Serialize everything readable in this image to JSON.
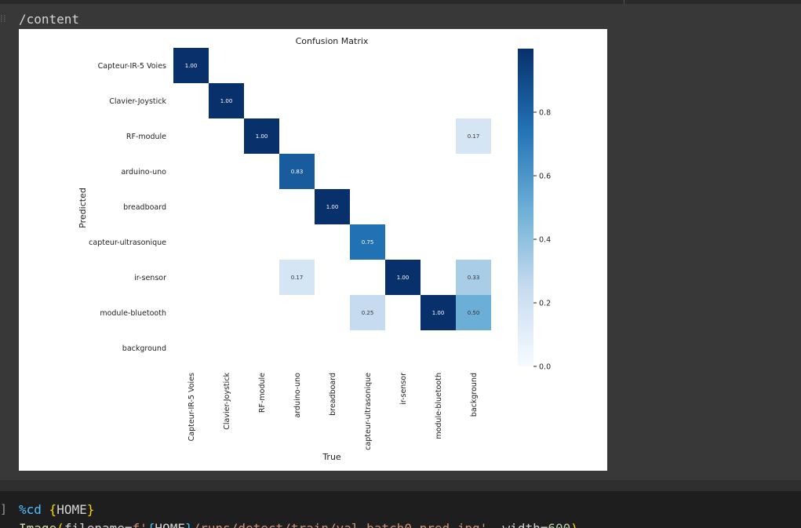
{
  "output": {
    "path": "/content"
  },
  "code": {
    "prompt": "]",
    "line1": {
      "magic": "%cd",
      "open": "{",
      "var": "HOME",
      "close": "}"
    },
    "line2": {
      "fn": "Image",
      "paren_open": "(",
      "arg": "filename",
      "eq": "=",
      "fprefix": "f'",
      "brace_open": "{",
      "var": "HOME",
      "brace_close": "}",
      "path": "/runs/detect/train/val_batch0_pred.jpg'",
      "comma": ", ",
      "width_kw": "width",
      "width_eq": "=",
      "width_val": "600",
      "paren_close": ")"
    }
  },
  "chart_data": {
    "type": "heatmap",
    "title": "Confusion Matrix",
    "xlabel": "True",
    "ylabel": "Predicted",
    "x_categories": [
      "Capteur-IR-5 Voies",
      "Clavier-Joystick",
      "RF-module",
      "arduino-uno",
      "breadboard",
      "capteur-ultrasonique",
      "ir-sensor",
      "module-bluetooth",
      "background"
    ],
    "y_categories": [
      "Capteur-IR-5 Voies",
      "Clavier-Joystick",
      "RF-module",
      "arduino-uno",
      "breadboard",
      "capteur-ultrasonique",
      "ir-sensor",
      "module-bluetooth",
      "background"
    ],
    "cells": [
      {
        "row": "Capteur-IR-5 Voies",
        "col": "Capteur-IR-5 Voies",
        "value": 1.0,
        "label": "1.00"
      },
      {
        "row": "Clavier-Joystick",
        "col": "Clavier-Joystick",
        "value": 1.0,
        "label": "1.00"
      },
      {
        "row": "RF-module",
        "col": "RF-module",
        "value": 1.0,
        "label": "1.00"
      },
      {
        "row": "RF-module",
        "col": "background",
        "value": 0.17,
        "label": "0.17"
      },
      {
        "row": "arduino-uno",
        "col": "arduino-uno",
        "value": 0.83,
        "label": "0.83"
      },
      {
        "row": "breadboard",
        "col": "breadboard",
        "value": 1.0,
        "label": "1.00"
      },
      {
        "row": "capteur-ultrasonique",
        "col": "capteur-ultrasonique",
        "value": 0.75,
        "label": "0.75"
      },
      {
        "row": "ir-sensor",
        "col": "arduino-uno",
        "value": 0.17,
        "label": "0.17"
      },
      {
        "row": "ir-sensor",
        "col": "ir-sensor",
        "value": 1.0,
        "label": "1.00"
      },
      {
        "row": "ir-sensor",
        "col": "background",
        "value": 0.33,
        "label": "0.33"
      },
      {
        "row": "module-bluetooth",
        "col": "capteur-ultrasonique",
        "value": 0.25,
        "label": "0.25"
      },
      {
        "row": "module-bluetooth",
        "col": "module-bluetooth",
        "value": 1.0,
        "label": "1.00"
      },
      {
        "row": "module-bluetooth",
        "col": "background",
        "value": 0.5,
        "label": "0.50"
      }
    ],
    "colorbar": {
      "range": [
        0,
        1
      ],
      "ticks": [
        "0.0",
        "0.2",
        "0.4",
        "0.6",
        "0.8"
      ],
      "tick_values": [
        0,
        0.2,
        0.4,
        0.6,
        0.8
      ],
      "colormap": "Blues"
    },
    "grid": false,
    "colors": {
      "low": "#f7fbff",
      "high": "#08306b"
    }
  }
}
